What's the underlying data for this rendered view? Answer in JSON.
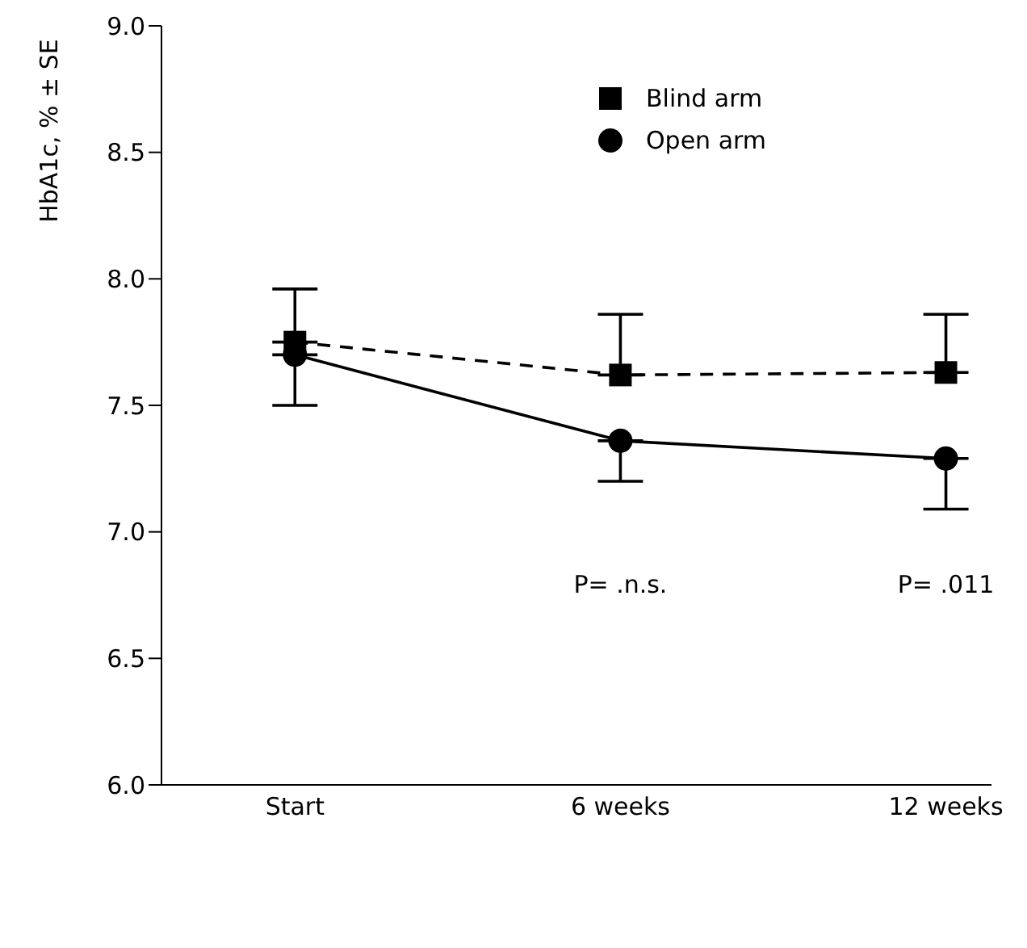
{
  "chart_data": {
    "type": "line",
    "ylabel": "HbA1c, % ± SE",
    "categories": [
      "Start",
      "6 weeks",
      "12 weeks"
    ],
    "series": [
      {
        "name": "Blind arm",
        "color": "#000000",
        "marker": "square",
        "line_style": "dashed",
        "values": [
          7.75,
          7.62,
          7.63
        ],
        "errors": [
          [
            7.75,
            7.96
          ],
          [
            7.62,
            7.86
          ],
          [
            7.63,
            7.86
          ]
        ]
      },
      {
        "name": "Open arm",
        "color": "#000000",
        "marker": "circle",
        "line_style": "solid",
        "values": [
          7.7,
          7.36,
          7.29
        ],
        "errors": [
          [
            7.5,
            7.7
          ],
          [
            7.2,
            7.36
          ],
          [
            7.09,
            7.29
          ]
        ]
      }
    ],
    "ylim": [
      6,
      9
    ],
    "yticks": [
      {
        "value": 6,
        "label": "6.0"
      },
      {
        "value": 6.5,
        "label": "6.5"
      },
      {
        "value": 7,
        "label": "7.0"
      },
      {
        "value": 7.5,
        "label": "7.5"
      },
      {
        "value": 8,
        "label": "8.0"
      },
      {
        "value": 8.5,
        "label": "8.5"
      },
      {
        "value": 9,
        "label": "9.0"
      }
    ],
    "legend": "top right",
    "grid": false,
    "annotations": [
      "P= .n.s.",
      "P= .011"
    ]
  }
}
